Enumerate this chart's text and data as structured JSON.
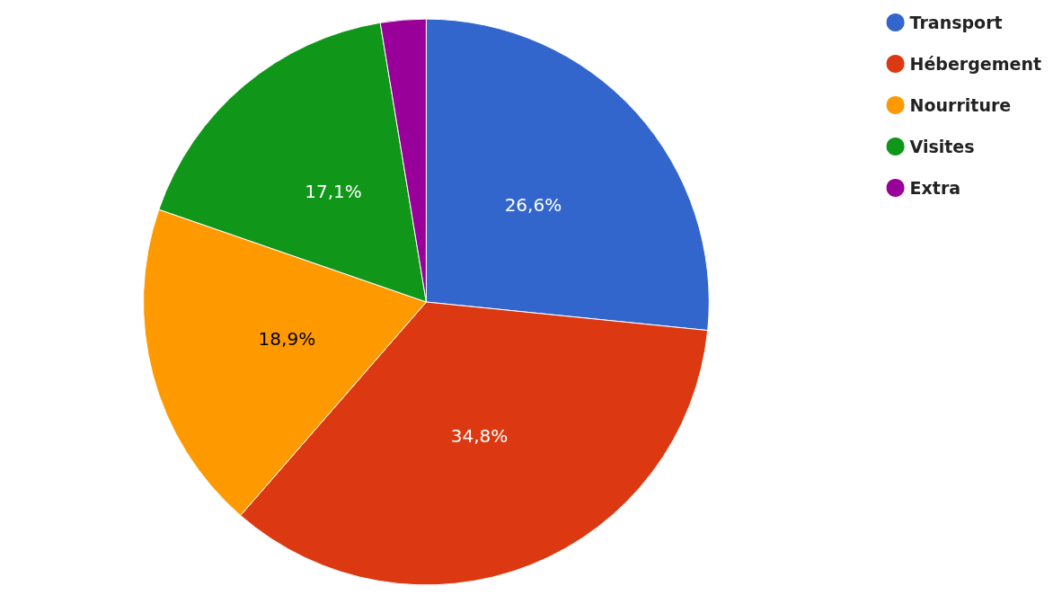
{
  "chart_data": {
    "type": "pie",
    "categories": [
      "Transport",
      "Hébergement",
      "Nourriture",
      "Visites",
      "Extra"
    ],
    "values": [
      26.6,
      34.8,
      18.9,
      17.1,
      2.6
    ],
    "colors": [
      "#3366cc",
      "#dc3912",
      "#ff9900",
      "#109618",
      "#990099"
    ],
    "value_labels": [
      "26,6%",
      "34,8%",
      "18,9%",
      "17,1%",
      null
    ],
    "legend": "top right"
  }
}
